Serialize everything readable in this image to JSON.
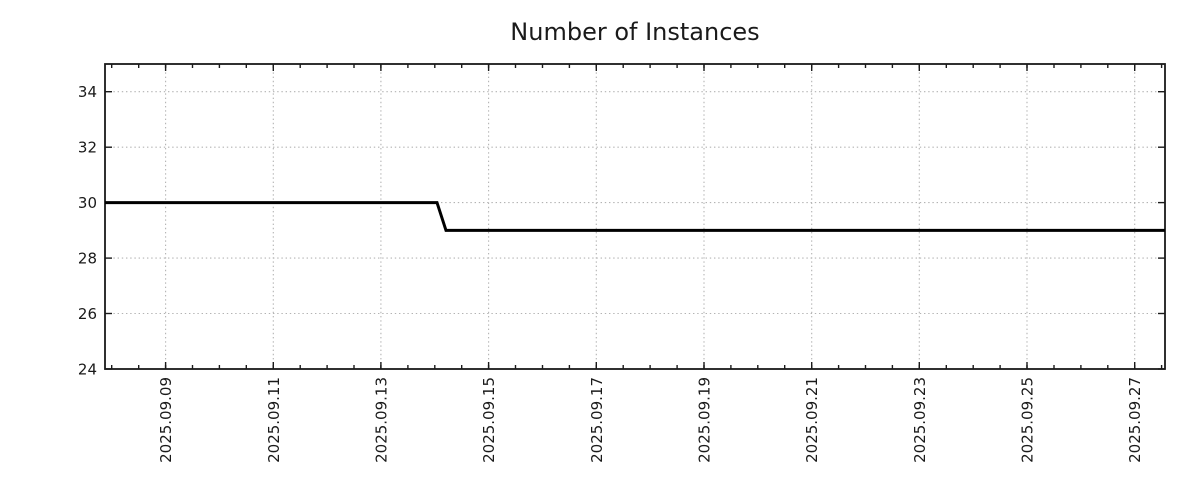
{
  "chart_data": {
    "type": "line",
    "title": "Number of Instances",
    "xlabel": "",
    "ylabel": "",
    "legend": {
      "visible": false
    },
    "series": [
      {
        "name": "Number of Instances",
        "color": "#000000",
        "line_width": 3,
        "points": [
          {
            "t": "2025-09-07T21:00",
            "v": 30
          },
          {
            "t": "2025-09-14T01:00",
            "v": 30
          },
          {
            "t": "2025-09-14T05:00",
            "v": 29
          },
          {
            "t": "2025-09-27T13:30",
            "v": 29
          }
        ]
      }
    ],
    "x_axis": {
      "min": "2025-09-07T21:00",
      "max": "2025-09-27T13:30",
      "minor_step_hours": 12,
      "major_ticks": [
        {
          "label": "2025.09.09",
          "t": "2025-09-09T00:00"
        },
        {
          "label": "2025.09.11",
          "t": "2025-09-11T00:00"
        },
        {
          "label": "2025.09.13",
          "t": "2025-09-13T00:00"
        },
        {
          "label": "2025.09.15",
          "t": "2025-09-15T00:00"
        },
        {
          "label": "2025.09.17",
          "t": "2025-09-17T00:00"
        },
        {
          "label": "2025.09.19",
          "t": "2025-09-19T00:00"
        },
        {
          "label": "2025.09.21",
          "t": "2025-09-21T00:00"
        },
        {
          "label": "2025.09.23",
          "t": "2025-09-23T00:00"
        },
        {
          "label": "2025.09.25",
          "t": "2025-09-25T00:00"
        },
        {
          "label": "2025.09.27",
          "t": "2025-09-27T00:00"
        }
      ]
    },
    "y_axis": {
      "min": 24,
      "max": 35.0,
      "ticks": [
        24,
        26,
        28,
        30,
        32,
        34
      ]
    },
    "grid": {
      "visible": true,
      "style": "dotted",
      "color": "#b3b3b3"
    },
    "colors": {
      "axis": "#1a1a1a",
      "text": "#1a1a1a",
      "background": "#ffffff"
    }
  }
}
